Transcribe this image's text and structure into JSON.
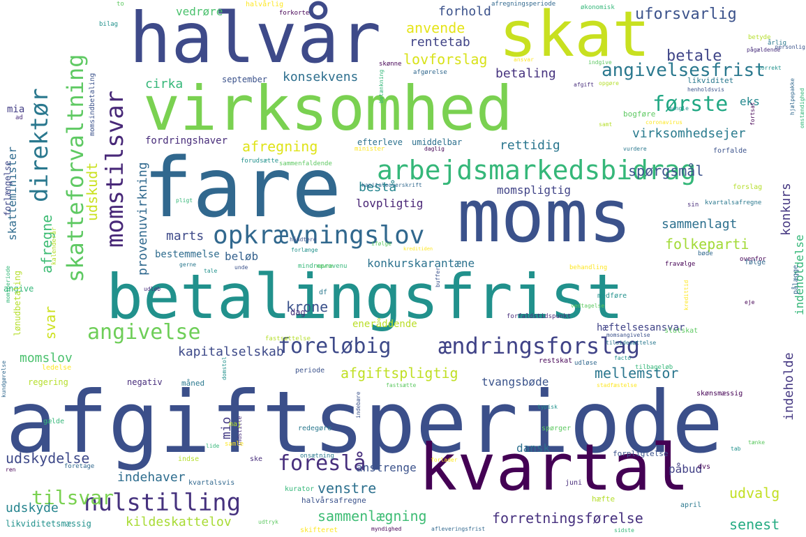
{
  "words": [
    {
      "text": "afgiftsperiode",
      "color": "#3b4f8a"
    },
    {
      "text": "betalingsfrist",
      "color": "#21918c"
    },
    {
      "text": "virksomhed",
      "color": "#7ad151"
    },
    {
      "text": "fare",
      "color": "#31688e"
    },
    {
      "text": "moms",
      "color": "#3b528b"
    },
    {
      "text": "halvår",
      "color": "#3e4a89"
    },
    {
      "text": "skat",
      "color": "#c8e020"
    },
    {
      "text": "kvartal",
      "color": "#440154"
    },
    {
      "text": "arbejdsmarkedsbidrag",
      "color": "#35b779"
    },
    {
      "text": "opkrævningslov",
      "color": "#31688e"
    },
    {
      "text": "skatteforvaltning",
      "color": "#5ec962"
    },
    {
      "text": "momstilsvar",
      "color": "#482878"
    },
    {
      "text": "direktør",
      "color": "#2a788e"
    },
    {
      "text": "foreløbig",
      "color": "#3e4a89"
    },
    {
      "text": "ændringsforslag",
      "color": "#404387"
    },
    {
      "text": "angivelse",
      "color": "#6ece58"
    },
    {
      "text": "nulstilling",
      "color": "#46327e"
    },
    {
      "text": "foreslå",
      "color": "#472f7d"
    },
    {
      "text": "første",
      "color": "#22a884"
    },
    {
      "text": "angivelsesfrist",
      "color": "#2a788e"
    },
    {
      "text": "uforsvarlig",
      "color": "#3b528b"
    },
    {
      "text": "betale",
      "color": "#404688"
    },
    {
      "text": "lovforslag",
      "color": "#d8e219"
    },
    {
      "text": "anvende",
      "color": "#e5e419"
    },
    {
      "text": "rentetab",
      "color": "#414487"
    },
    {
      "text": "forhold",
      "color": "#3b528b"
    },
    {
      "text": "betaling",
      "color": "#46337f"
    },
    {
      "text": "konsekvens",
      "color": "#2e6f8e"
    },
    {
      "text": "cirka",
      "color": "#35b779"
    },
    {
      "text": "september",
      "color": "#3b528b"
    },
    {
      "text": "vedrøre",
      "color": "#4ac16d"
    },
    {
      "text": "eks",
      "color": "#23888e"
    },
    {
      "text": "virksomhedsejer",
      "color": "#297b8e"
    },
    {
      "text": "rettidig",
      "color": "#2a768e"
    },
    {
      "text": "afregning",
      "color": "#dfe318"
    },
    {
      "text": "udskudt",
      "color": "#cae11f"
    },
    {
      "text": "provenuvirkning",
      "color": "#30698e"
    },
    {
      "text": "afregne",
      "color": "#3ebc74"
    },
    {
      "text": "fordringshaver",
      "color": "#472c7a"
    },
    {
      "text": "efterleve",
      "color": "#2c728e"
    },
    {
      "text": "umiddelbar",
      "color": "#2d708e"
    },
    {
      "text": "spørgsmål",
      "color": "#3b528b"
    },
    {
      "text": "momspligtig",
      "color": "#414487"
    },
    {
      "text": "lovpligtig",
      "color": "#482475"
    },
    {
      "text": "bestå",
      "color": "#25858e"
    },
    {
      "text": "sammenlagt",
      "color": "#2d708e"
    },
    {
      "text": "konkurs",
      "color": "#453781"
    },
    {
      "text": "folkeparti",
      "color": "#a2da37"
    },
    {
      "text": "marts",
      "color": "#3e4a89"
    },
    {
      "text": "beløb",
      "color": "#34618d"
    },
    {
      "text": "konkurskarantæne",
      "color": "#2c728e"
    },
    {
      "text": "bestemmelse",
      "color": "#2f6c8e"
    },
    {
      "text": "krone",
      "color": "#3b528b"
    },
    {
      "text": "svar",
      "color": "#cde11d"
    },
    {
      "text": "momslov",
      "color": "#4ac16d"
    },
    {
      "text": "kapitalselskab",
      "color": "#3e4a89"
    },
    {
      "text": "afgiftspligtig",
      "color": "#c0df25"
    },
    {
      "text": "mellemstor",
      "color": "#2a768e"
    },
    {
      "text": "tvangsbøde",
      "color": "#3a538b"
    },
    {
      "text": "hæftelsesansvar",
      "color": "#404387"
    },
    {
      "text": "eneråddende",
      "color": "#bade28"
    },
    {
      "text": "indeholdelse",
      "color": "#35b779"
    },
    {
      "text": "indeholde",
      "color": "#453882"
    },
    {
      "text": "mio",
      "color": "#443b84"
    },
    {
      "text": "udskydelse",
      "color": "#3e4989"
    },
    {
      "text": "tilsvar",
      "color": "#7ad151"
    },
    {
      "text": "indehaver",
      "color": "#2e6d8e"
    },
    {
      "text": "venstre",
      "color": "#2d708e"
    },
    {
      "text": "udvalg",
      "color": "#c2df23"
    },
    {
      "text": "påbud",
      "color": "#424186"
    },
    {
      "text": "sammenlægning",
      "color": "#3dbc74"
    },
    {
      "text": "forretningsførelse",
      "color": "#46307e"
    },
    {
      "text": "senest",
      "color": "#25ab82"
    },
    {
      "text": "kildeskattelov",
      "color": "#a8db34"
    },
    {
      "text": "udskyde",
      "color": "#25848e"
    },
    {
      "text": "dansk",
      "color": "#2d708e"
    },
    {
      "text": "anstrenge",
      "color": "#3b528b"
    },
    {
      "text": "skatteminister",
      "color": "#2f6b8e"
    },
    {
      "text": "mia",
      "color": "#433e85"
    },
    {
      "text": "forlængelse",
      "color": "#3f4788"
    }
  ],
  "small_words": [
    "momsindbetaling",
    "bilag",
    "to",
    "halvårlig",
    "forkorte",
    "afregningsperiode",
    "økonomisk",
    "betyde",
    "pågældende",
    "årlig",
    "personlig",
    "korrekt",
    "indgive",
    "ansvar",
    "skønne",
    "afgørelse",
    "betænkning",
    "opgøre",
    "afgift",
    "likviditet",
    "henholdsvis",
    "mangle",
    "bogføre",
    "coronavirus",
    "fortsat",
    "hjælpepakke",
    "omstændighed",
    "samt",
    "ad",
    "vurdere",
    "forfalde",
    "forudsætte",
    "sammenfaldende",
    "minister",
    "daglig",
    "kapitaleoverskrift",
    "pligt",
    "forslag",
    "sin",
    "kvartalsafregne",
    "håndtere",
    "forlænge",
    "ifølge",
    "kreditiden",
    "ovenfor",
    "bøde",
    "mindreprovenu",
    "kalenderår",
    "udløb",
    "gerne",
    "unde",
    "tale",
    "nævne",
    "behandling",
    "fravælge",
    "følge",
    "angive",
    "lønudbetaling",
    "dag",
    "df",
    "buffer",
    "medføre",
    "vedtagelse",
    "kredittid",
    "eje",
    "pålægge",
    "momsperiode",
    "fastsættelse",
    "forfaldstidspunkt",
    "tilsidesættelse",
    "momsangivelse",
    "facto",
    "slutskat",
    "ledelse",
    "restskat",
    "udløse",
    "tilbageløb",
    "regering",
    "negativ",
    "måned",
    "periode",
    "domstol",
    "fastsætte",
    "stadfæstelse",
    "skønsmæssig",
    "kundgørelse",
    "gælde",
    "maj",
    "indstille",
    "redegøre",
    "indebære",
    "typisk",
    "spørger",
    "samle",
    "ren",
    "foretage",
    "lide",
    "indse",
    "ske",
    "onsætning",
    "forpligtelse",
    "tab",
    "tænke",
    "forlader",
    "dvs",
    "kvartalsvis",
    "kurator",
    "hæfte",
    "juni",
    "april",
    "halvårsafregne",
    "likviditetsmæssig",
    "udtryk",
    "skifteret",
    "myndighed",
    "afleveringsfrist",
    "sidste"
  ]
}
